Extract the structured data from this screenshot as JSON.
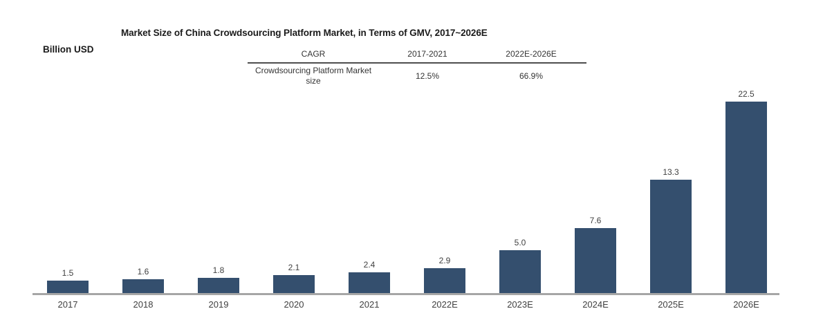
{
  "title": "Market Size of China Crowdsourcing Platform Market, in Terms of GMV, 2017~2026E",
  "y_axis_label": "Billion USD",
  "cagr_table": {
    "headers": [
      "CAGR",
      "2017-2021",
      "2022E-2026E"
    ],
    "row_label": "Crowdsourcing Platform Market size",
    "row_values": [
      "12.5%",
      "66.9%"
    ]
  },
  "chart_data": {
    "type": "bar",
    "categories": [
      "2017",
      "2018",
      "2019",
      "2020",
      "2021",
      "2022E",
      "2023E",
      "2024E",
      "2025E",
      "2026E"
    ],
    "values": [
      1.5,
      1.6,
      1.8,
      2.1,
      2.4,
      2.9,
      5.0,
      7.6,
      13.3,
      22.5
    ],
    "value_labels": [
      "1.5",
      "1.6",
      "1.8",
      "2.1",
      "2.4",
      "2.9",
      "5.0",
      "7.6",
      "13.3",
      "22.5"
    ],
    "title": "Market Size of China Crowdsourcing Platform Market, in Terms of GMV, 2017~2026E",
    "xlabel": "",
    "ylabel": "Billion USD",
    "ylim": [
      0,
      25
    ],
    "grid": false,
    "legend": "none",
    "data_labels": true,
    "bar_color": "#344f6e",
    "axis_color": "#a6a6a6",
    "label_color": "#404040"
  }
}
